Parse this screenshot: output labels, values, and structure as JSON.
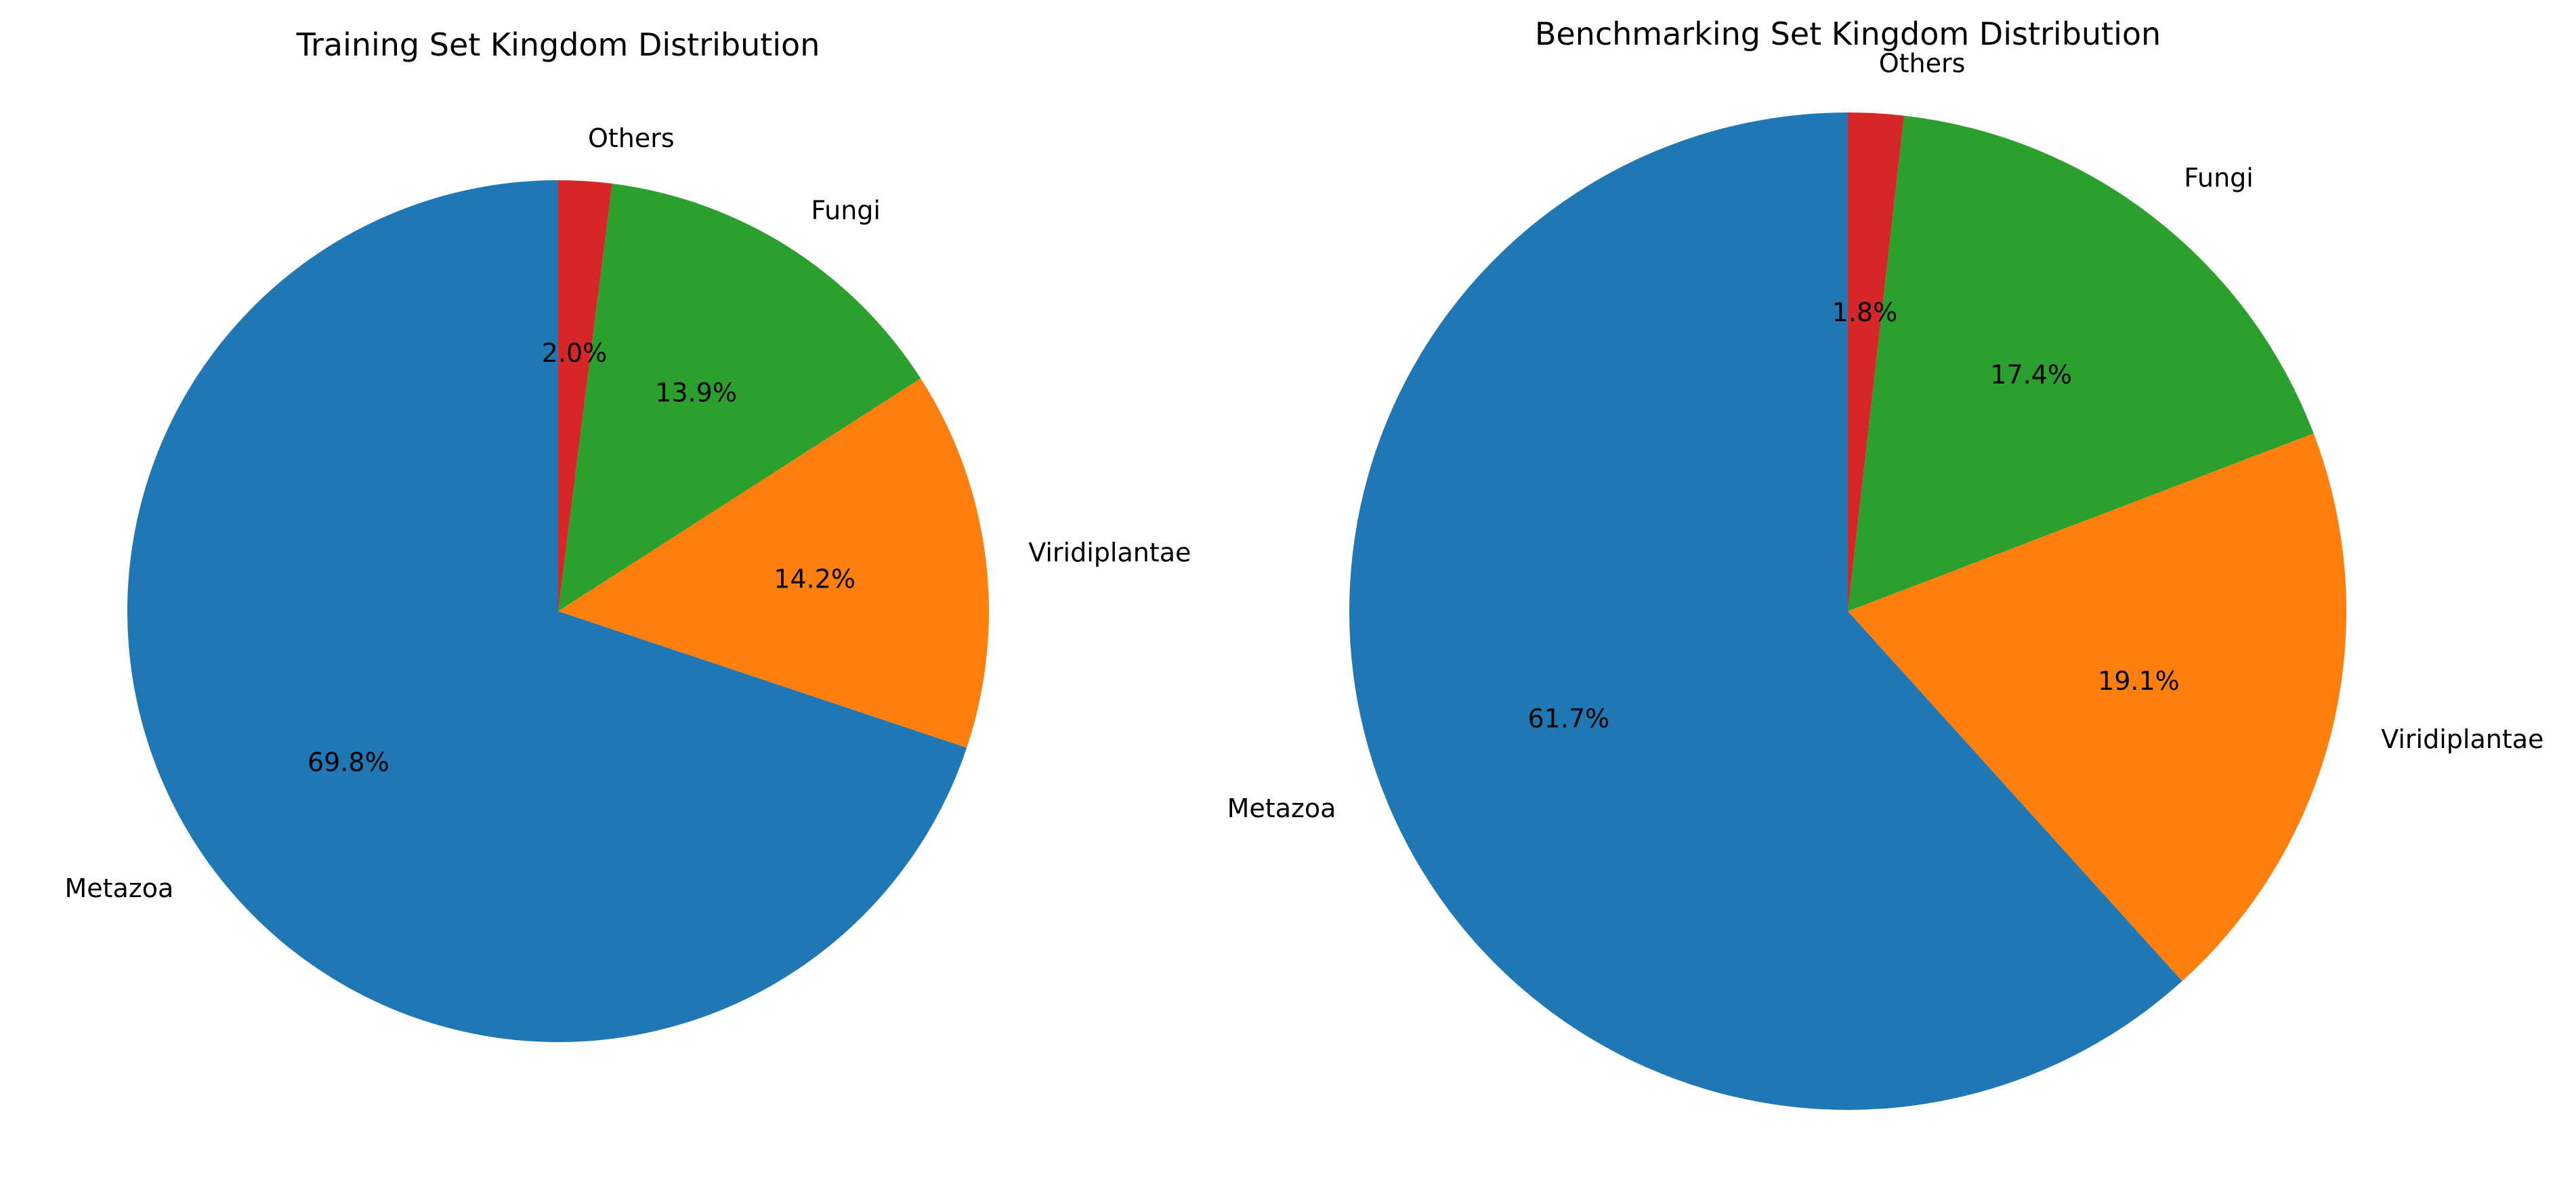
{
  "chart_data": [
    {
      "type": "pie",
      "title": "Training Set Kingdom Distribution",
      "categories": [
        "Metazoa",
        "Viridiplantae",
        "Fungi",
        "Others"
      ],
      "values": [
        69.8,
        14.2,
        13.9,
        2.0
      ],
      "value_labels": [
        "69.8%",
        "14.2%",
        "13.9%",
        "2.0%"
      ],
      "colors": [
        "#1f77b4",
        "#ff7f0e",
        "#2ca02c",
        "#d62728"
      ],
      "start_angle": 90,
      "direction": "counterclockwise",
      "legend": "none"
    },
    {
      "type": "pie",
      "title": "Benchmarking Set Kingdom Distribution",
      "categories": [
        "Metazoa",
        "Viridiplantae",
        "Fungi",
        "Others"
      ],
      "values": [
        61.7,
        19.1,
        17.4,
        1.8
      ],
      "value_labels": [
        "61.7%",
        "19.1%",
        "17.4%",
        "1.8%"
      ],
      "colors": [
        "#1f77b4",
        "#ff7f0e",
        "#2ca02c",
        "#d62728"
      ],
      "start_angle": 90,
      "direction": "counterclockwise",
      "legend": "none"
    }
  ]
}
